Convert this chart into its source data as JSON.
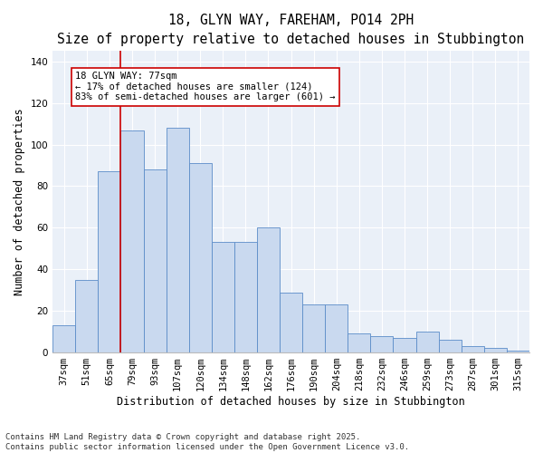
{
  "title_line1": "18, GLYN WAY, FAREHAM, PO14 2PH",
  "title_line2": "Size of property relative to detached houses in Stubbington",
  "xlabel": "Distribution of detached houses by size in Stubbington",
  "ylabel": "Number of detached properties",
  "categories": [
    "37sqm",
    "51sqm",
    "65sqm",
    "79sqm",
    "93sqm",
    "107sqm",
    "120sqm",
    "134sqm",
    "148sqm",
    "162sqm",
    "176sqm",
    "190sqm",
    "204sqm",
    "218sqm",
    "232sqm",
    "246sqm",
    "259sqm",
    "273sqm",
    "287sqm",
    "301sqm",
    "315sqm"
  ],
  "values": [
    13,
    35,
    87,
    107,
    88,
    108,
    91,
    53,
    53,
    60,
    29,
    23,
    23,
    9,
    8,
    7,
    10,
    6,
    3,
    2,
    1
  ],
  "bar_color": "#c9d9ef",
  "bar_edge_color": "#5b8cc8",
  "vline_x_index": 3,
  "vline_color": "#cc0000",
  "annotation_text": "18 GLYN WAY: 77sqm\n← 17% of detached houses are smaller (124)\n83% of semi-detached houses are larger (601) →",
  "annotation_box_color": "#ffffff",
  "annotation_box_edge_color": "#cc0000",
  "ylim": [
    0,
    145
  ],
  "yticks": [
    0,
    20,
    40,
    60,
    80,
    100,
    120,
    140
  ],
  "bg_color": "#eaf0f8",
  "footer_line1": "Contains HM Land Registry data © Crown copyright and database right 2025.",
  "footer_line2": "Contains public sector information licensed under the Open Government Licence v3.0.",
  "title_fontsize": 10.5,
  "subtitle_fontsize": 9.5,
  "axis_label_fontsize": 8.5,
  "tick_fontsize": 7.5,
  "annotation_fontsize": 7.5,
  "footer_fontsize": 6.5
}
